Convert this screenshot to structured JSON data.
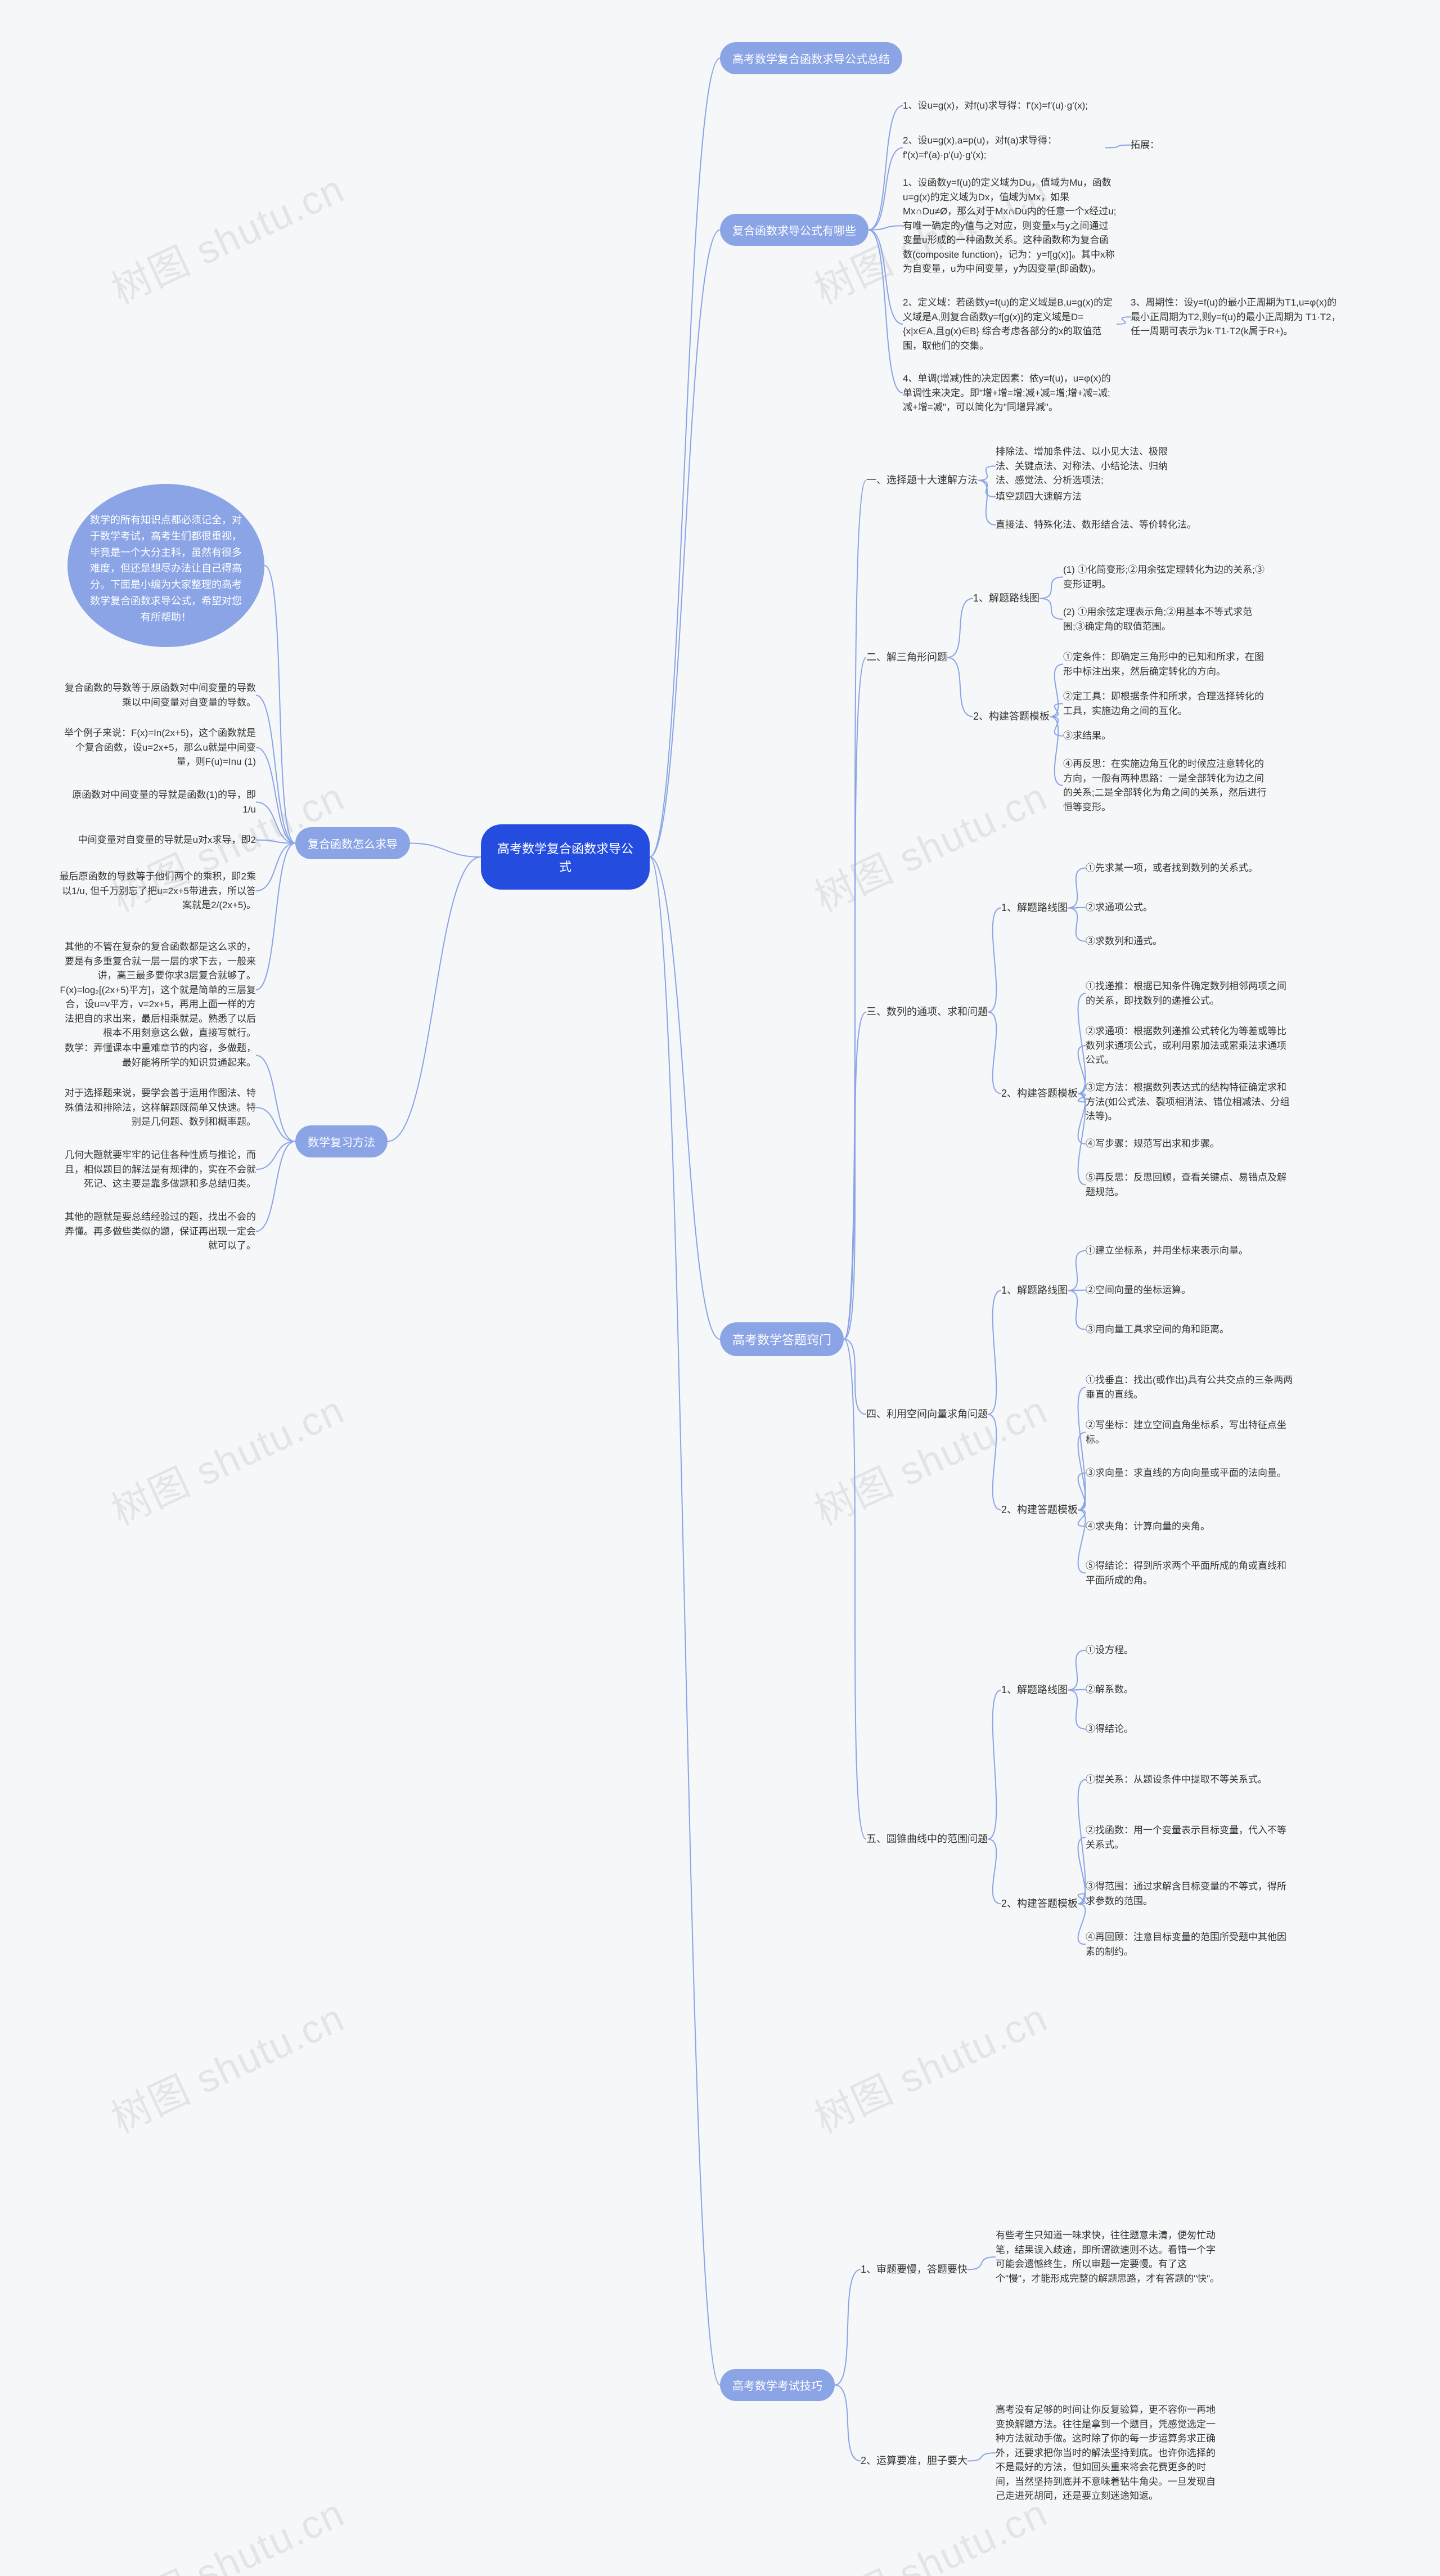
{
  "watermark": "树图 shutu.cn",
  "root": "高考数学复合函数求导公式",
  "intro": "数学的所有知识点都必须记全，对于数学考试，高考生们都很重视，毕竟是一个大分主科，虽然有很多难度，但还是想尽办法让自己得高分。下面是小编为大家整理的高考数学复合函数求导公式，希望对您有所帮助！",
  "colors": {
    "root_bg": "#244de0",
    "bubble_bg": "#8aa4e6",
    "pill_bg": "#8aa4e6",
    "edge": "#8aa4e6",
    "canvas_bg": "#f6f7f8",
    "text": "#333333"
  },
  "b": [
    {
      "t": "高考数学复合函数求导公式总结"
    },
    {
      "t": "复合函数求导公式有哪些",
      "c": [
        "1、设u=g(x)，对f(u)求导得：f'(x)=f'(u)·g'(x);",
        "2、设u=g(x),a=p(u)，对f(a)求导得：f'(x)=f'(a)·p'(u)·g'(x);",
        "拓展：",
        "1、设函数y=f(u)的定义域为Du，值域为Mu，函数u=g(x)的定义域为Dx，值域为Mx，如果Mx∩Du≠Ø，那么对于Mx∩Du内的任意一个x经过u;有唯一确定的y值与之对应，则变量x与y之间通过变量u形成的一种函数关系。这种函数称为复合函数(composite function)，记为：y=f[g(x)]。其中x称为自变量，u为中间变量，y为因变量(即函数)。",
        "2、定义域：若函数y=f(u)的定义域是B,u=g(x)的定义域是A,则复合函数y=f[g(x)]的定义域是D= {x|x∈A,且g(x)∈B} 综合考虑各部分的x的取值范围，取他们的交集。",
        "3、周期性：设y=f(u)的最小正周期为T1,u=φ(x)的最小正周期为T2,则y=f(u)的最小正周期为 T1·T2，任一周期可表示为k·T1·T2(k属于R+)。",
        "4、单调(增减)性的决定因素：依y=f(u)，u=φ(x)的单调性来决定。即\"增+增=增;减+减=增;增+减=减;减+增=减\"，可以简化为\"同增异减\"。"
      ]
    },
    {
      "t": "高考数学答题窍门",
      "c": [
        {
          "t": "一、选择题十大速解方法",
          "c": [
            "排除法、增加条件法、以小见大法、极限法、关键点法、对称法、小结论法、归纳法、感觉法、分析选项法;",
            "填空题四大速解方法",
            "直接法、特殊化法、数形结合法、等价转化法。"
          ]
        },
        {
          "t": "二、解三角形问题",
          "c": [
            {
              "t": "1、解题路线图",
              "c": [
                "(1) ①化简变形;②用余弦定理转化为边的关系;③变形证明。",
                "(2) ①用余弦定理表示角;②用基本不等式求范围;③确定角的取值范围。"
              ]
            },
            {
              "t": "2、构建答题模板",
              "c": [
                "①定条件：即确定三角形中的已知和所求，在图形中标注出来，然后确定转化的方向。",
                "②定工具：即根据条件和所求，合理选择转化的工具，实施边角之间的互化。",
                "③求结果。",
                "④再反思：在实施边角互化的时候应注意转化的方向，一般有两种思路：一是全部转化为边之间的关系;二是全部转化为角之间的关系，然后进行恒等变形。"
              ]
            }
          ]
        },
        {
          "t": "三、数列的通项、求和问题",
          "c": [
            {
              "t": "1、解题路线图",
              "c": [
                "①先求某一项，或者找到数列的关系式。",
                "②求通项公式。",
                "③求数列和通式。"
              ]
            },
            {
              "t": "2、构建答题模板",
              "c": [
                "①找递推：根据已知条件确定数列相邻两项之间的关系，即找数列的递推公式。",
                "②求通项：根据数列递推公式转化为等差或等比数列求通项公式，或利用累加法或累乘法求通项公式。",
                "③定方法：根据数列表达式的结构特征确定求和方法(如公式法、裂项相消法、错位相减法、分组法等)。",
                "④写步骤：规范写出求和步骤。",
                "⑤再反思：反思回顾，查看关键点、易错点及解题规范。"
              ]
            }
          ]
        },
        {
          "t": "四、利用空间向量求角问题",
          "c": [
            {
              "t": "1、解题路线图",
              "c": [
                "①建立坐标系，并用坐标来表示向量。",
                "②空间向量的坐标运算。",
                "③用向量工具求空间的角和距离。"
              ]
            },
            {
              "t": "2、构建答题模板",
              "c": [
                "①找垂直：找出(或作出)具有公共交点的三条两两垂直的直线。",
                "②写坐标：建立空间直角坐标系，写出特征点坐标。",
                "③求向量：求直线的方向向量或平面的法向量。",
                "④求夹角：计算向量的夹角。",
                "⑤得结论：得到所求两个平面所成的角或直线和平面所成的角。"
              ]
            }
          ]
        },
        {
          "t": "五、圆锥曲线中的范围问题",
          "c": [
            {
              "t": "1、解题路线图",
              "c": [
                "①设方程。",
                "②解系数。",
                "③得结论。"
              ]
            },
            {
              "t": "2、构建答题模板",
              "c": [
                "①提关系：从题设条件中提取不等关系式。",
                "②找函数：用一个变量表示目标变量，代入不等关系式。",
                "③得范围：通过求解含目标变量的不等式，得所求参数的范围。",
                "④再回顾：注意目标变量的范围所受题中其他因素的制约。"
              ]
            }
          ]
        }
      ]
    },
    {
      "t": "高考数学考试技巧",
      "c": [
        {
          "t": "1、审题要慢，答题要快",
          "c": [
            "有些考生只知道一味求快，往往题意未清，便匆忙动笔，结果误入歧途，即所谓欲速则不达。看错一个字可能会遗憾终生，所以审题一定要慢。有了这个\"慢\"，才能形成完整的解题思路，才有答题的\"快\"。"
          ]
        },
        {
          "t": "2、运算要准，胆子要大",
          "c": [
            "高考没有足够的时间让你反复验算，更不容你一再地变换解题方法。往往是拿到一个题目，凭感觉选定一种方法就动手做。这时除了你的每一步运算务求正确外，还要求把你当时的解法坚持到底。也许你选择的不是最好的方法，但如回头重来将会花费更多的时间，当然坚持到底并不意味着钻牛角尖。一旦发现自己走进死胡同，还是要立刻迷途知返。"
          ]
        }
      ]
    },
    {
      "t": "复合函数怎么求导",
      "c": [
        "复合函数的导数等于原函数对中间变量的导数乘以中间变量对自变量的导数。",
        "举个例子来说：F(x)=In(2x+5)，这个函数就是个复合函数，设u=2x+5，那么u就是中间变量，则F(u)=Inu (1)",
        "原函数对中间变量的导就是函数(1)的导，即1/u",
        "中间变量对自变量的导就是u对x求导，即2",
        "最后原函数的导数等于他们两个的乘积，即2乘以1/u, 但千万别忘了把u=2x+5带进去，所以答案就是2/(2x+5)。",
        "其他的不管在复杂的复合函数都是这么求的，要是有多重复合就一层一层的求下去，一般来讲，高三最多要你求3层复合就够了。 F(x)=log₂[(2x+5)平方]，这个就是简单的三层复合，设u=v平方，v=2x+5，再用上面一样的方法把自的求出来，最后相乘就是。熟悉了以后根本不用刻意这么做，直接写就行。"
      ]
    },
    {
      "t": "数学复习方法",
      "c": [
        "数学：弄懂课本中重难章节的内容，多做题，最好能将所学的知识贯通起来。",
        "对于选择题来说，要学会善于运用作图法、特殊值法和排除法，这样解题既简单又快速。特别是几何题、数列和概率题。",
        "几何大题就要牢牢的记住各种性质与推论，而且，相似题目的解法是有规律的，实在不会就死记、这主要是靠多做题和多总结归类。",
        "其他的题就是要总结经验过的题，找出不会的弄懂。再多做些类似的题，保证再出现一定会就可以了。"
      ]
    }
  ],
  "edgeDefs": [
    [
      "root",
      "p1",
      "R",
      "L"
    ],
    [
      "root",
      "p2",
      "R",
      "L"
    ],
    [
      "root",
      "p3",
      "R",
      "L"
    ],
    [
      "root",
      "p4",
      "R",
      "L"
    ],
    [
      "root",
      "p5",
      "L",
      "R"
    ],
    [
      "root",
      "p6",
      "L",
      "R"
    ],
    [
      "p5",
      "intro",
      "L",
      "R"
    ],
    [
      "p2",
      "p2a",
      "R",
      "L"
    ],
    [
      "p2",
      "p2b",
      "R",
      "L"
    ],
    [
      "p2b",
      "p2b2",
      "R",
      "L"
    ],
    [
      "p2",
      "p2c",
      "R",
      "L"
    ],
    [
      "p2",
      "p2d",
      "R",
      "L"
    ],
    [
      "p2d",
      "p2d2",
      "R",
      "L"
    ],
    [
      "p2",
      "p2e",
      "R",
      "L"
    ],
    [
      "p3",
      "t1",
      "R",
      "L"
    ],
    [
      "p3",
      "t2",
      "R",
      "L"
    ],
    [
      "p3",
      "t3",
      "R",
      "L"
    ],
    [
      "p3",
      "t4",
      "R",
      "L"
    ],
    [
      "p3",
      "t5",
      "R",
      "L"
    ],
    [
      "t1",
      "t1a",
      "R",
      "L"
    ],
    [
      "t1",
      "t1b",
      "R",
      "L"
    ],
    [
      "t1",
      "t1c",
      "R",
      "L"
    ],
    [
      "t2",
      "t2a",
      "R",
      "L"
    ],
    [
      "t2",
      "t2b",
      "R",
      "L"
    ],
    [
      "t2a",
      "t2a1",
      "R",
      "L"
    ],
    [
      "t2a",
      "t2a2",
      "R",
      "L"
    ],
    [
      "t2b",
      "t2b1",
      "R",
      "L"
    ],
    [
      "t2b",
      "t2b2",
      "R",
      "L"
    ],
    [
      "t2b",
      "t2b3",
      "R",
      "L"
    ],
    [
      "t2b",
      "t2b4",
      "R",
      "L"
    ],
    [
      "t3",
      "t3a",
      "R",
      "L"
    ],
    [
      "t3",
      "t3b",
      "R",
      "L"
    ],
    [
      "t3a",
      "t3a1",
      "R",
      "L"
    ],
    [
      "t3a",
      "t3a2",
      "R",
      "L"
    ],
    [
      "t3a",
      "t3a3",
      "R",
      "L"
    ],
    [
      "t3b",
      "t3b1",
      "R",
      "L"
    ],
    [
      "t3b",
      "t3b2",
      "R",
      "L"
    ],
    [
      "t3b",
      "t3b3",
      "R",
      "L"
    ],
    [
      "t3b",
      "t3b4",
      "R",
      "L"
    ],
    [
      "t3b",
      "t3b5",
      "R",
      "L"
    ],
    [
      "t4",
      "t4a",
      "R",
      "L"
    ],
    [
      "t4",
      "t4b",
      "R",
      "L"
    ],
    [
      "t4a",
      "t4a1",
      "R",
      "L"
    ],
    [
      "t4a",
      "t4a2",
      "R",
      "L"
    ],
    [
      "t4a",
      "t4a3",
      "R",
      "L"
    ],
    [
      "t4b",
      "t4b1",
      "R",
      "L"
    ],
    [
      "t4b",
      "t4b2",
      "R",
      "L"
    ],
    [
      "t4b",
      "t4b3",
      "R",
      "L"
    ],
    [
      "t4b",
      "t4b4",
      "R",
      "L"
    ],
    [
      "t4b",
      "t4b5",
      "R",
      "L"
    ],
    [
      "t5",
      "t5a",
      "R",
      "L"
    ],
    [
      "t5",
      "t5b",
      "R",
      "L"
    ],
    [
      "t5a",
      "t5a1",
      "R",
      "L"
    ],
    [
      "t5a",
      "t5a2",
      "R",
      "L"
    ],
    [
      "t5a",
      "t5a3",
      "R",
      "L"
    ],
    [
      "t5b",
      "t5b1",
      "R",
      "L"
    ],
    [
      "t5b",
      "t5b2",
      "R",
      "L"
    ],
    [
      "t5b",
      "t5b3",
      "R",
      "L"
    ],
    [
      "t5b",
      "t5b4",
      "R",
      "L"
    ],
    [
      "p4",
      "e1",
      "R",
      "L"
    ],
    [
      "p4",
      "e2",
      "R",
      "L"
    ],
    [
      "e1",
      "e1a",
      "R",
      "L"
    ],
    [
      "e2",
      "e2a",
      "R",
      "L"
    ],
    [
      "p5",
      "d1",
      "L",
      "R"
    ],
    [
      "p5",
      "d2",
      "L",
      "R"
    ],
    [
      "p5",
      "d3",
      "L",
      "R"
    ],
    [
      "p5",
      "d4",
      "L",
      "R"
    ],
    [
      "p5",
      "d5",
      "L",
      "R"
    ],
    [
      "p5",
      "d6",
      "L",
      "R"
    ],
    [
      "p6",
      "r1",
      "L",
      "R"
    ],
    [
      "p6",
      "r2",
      "L",
      "R"
    ],
    [
      "p6",
      "r3",
      "L",
      "R"
    ],
    [
      "p6",
      "r4",
      "L",
      "R"
    ]
  ]
}
